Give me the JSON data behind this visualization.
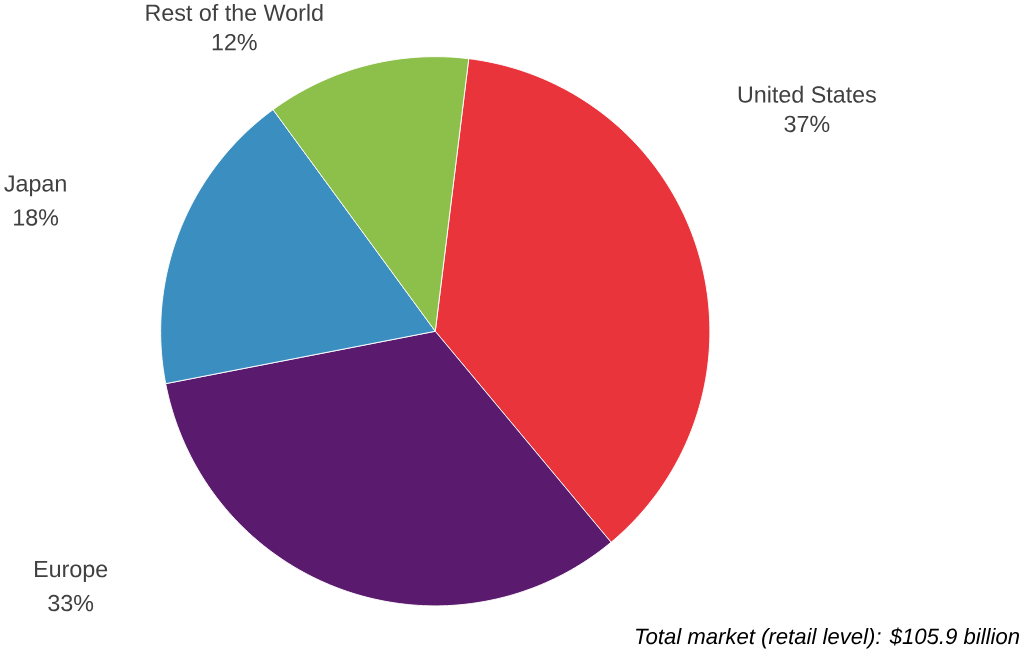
{
  "chart_data": {
    "type": "pie",
    "categories": [
      "United States",
      "Europe",
      "Japan",
      "Rest of the World"
    ],
    "values": [
      37,
      33,
      18,
      12
    ],
    "value_labels": [
      "37%",
      "33%",
      "18%",
      "12%"
    ],
    "colors": [
      "#e8343a",
      "#5a1a6e",
      "#3a8fc0",
      "#8cc04a"
    ],
    "annotations": [
      "Total market (retail level): $105.9 billion"
    ]
  }
}
